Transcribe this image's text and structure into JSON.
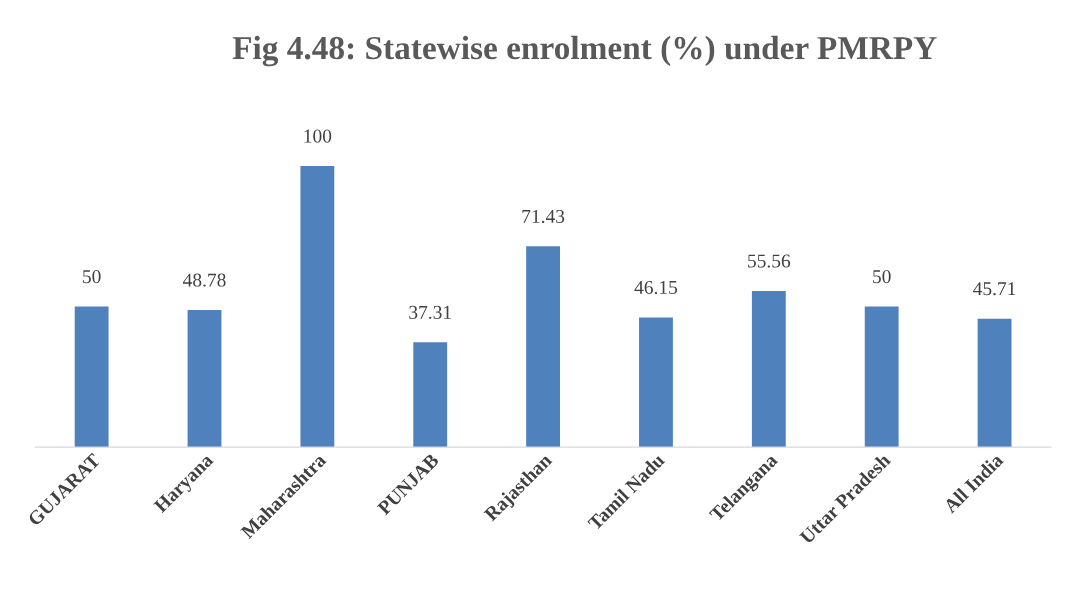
{
  "chart_data": {
    "type": "bar",
    "title": "Fig 4.48: Statewise enrolment (%) under PMRPY",
    "categories": [
      "GUJARAT",
      "Haryana",
      "Maharashtra",
      "PUNJAB",
      "Rajasthan",
      "Tamil Nadu",
      "Telangana",
      "Uttar Pradesh",
      "All India"
    ],
    "values": [
      50,
      48.78,
      100,
      37.31,
      71.43,
      46.15,
      55.56,
      50,
      45.71
    ],
    "value_labels": [
      "50",
      "48.78",
      "100",
      "37.31",
      "71.43",
      "46.15",
      "55.56",
      "50",
      "45.71"
    ],
    "color": "#4f81bd",
    "tick_labels": "x",
    "grid": false,
    "legend": false
  }
}
